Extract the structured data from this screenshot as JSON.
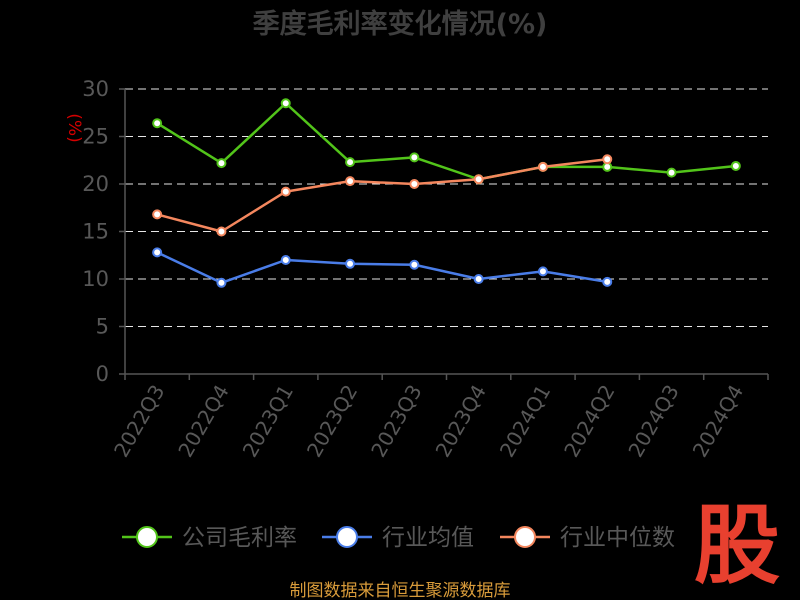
{
  "chart_data": {
    "type": "line",
    "title": "季度毛利率变化情况(%)",
    "ylabel": "(%)",
    "xlabel": "",
    "ylim": [
      0,
      30
    ],
    "yticks": [
      0,
      5,
      10,
      15,
      20,
      25,
      30
    ],
    "grid": true,
    "legend_position": "bottom",
    "categories": [
      "2022Q3",
      "2022Q4",
      "2023Q1",
      "2023Q2",
      "2023Q3",
      "2023Q4",
      "2024Q1",
      "2024Q2",
      "2024Q3",
      "2024Q4"
    ],
    "series": [
      {
        "name": "公司毛利率",
        "color": "#52c41a",
        "values": [
          26.4,
          22.2,
          28.5,
          22.3,
          22.8,
          20.5,
          21.8,
          21.8,
          21.2,
          21.9
        ]
      },
      {
        "name": "行业均值",
        "color": "#4a7de8",
        "values": [
          12.8,
          9.6,
          12.0,
          11.6,
          11.5,
          10.0,
          10.8,
          9.7,
          null,
          null
        ]
      },
      {
        "name": "行业中位数",
        "color": "#f4875e",
        "values": [
          16.8,
          15.0,
          19.2,
          20.3,
          20.0,
          20.5,
          21.8,
          22.6,
          null,
          null
        ]
      }
    ]
  },
  "source_note": "制图数据来自恒生聚源数据库",
  "logo_text": "股"
}
